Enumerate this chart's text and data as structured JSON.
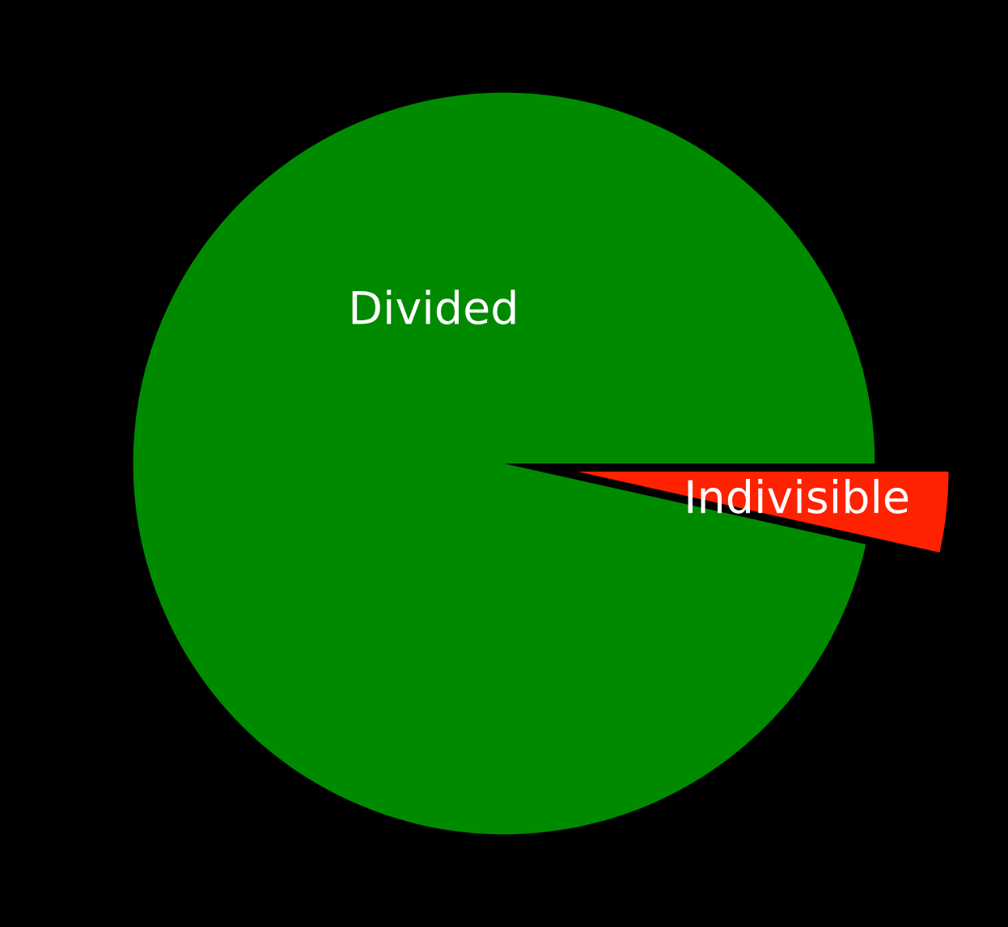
{
  "chart_data": {
    "type": "pie",
    "categories": [
      "Indivisible",
      "Divided"
    ],
    "values": [
      3.5,
      96.5
    ],
    "colors": [
      "#ff2200",
      "#008a00"
    ],
    "legend": false
  }
}
